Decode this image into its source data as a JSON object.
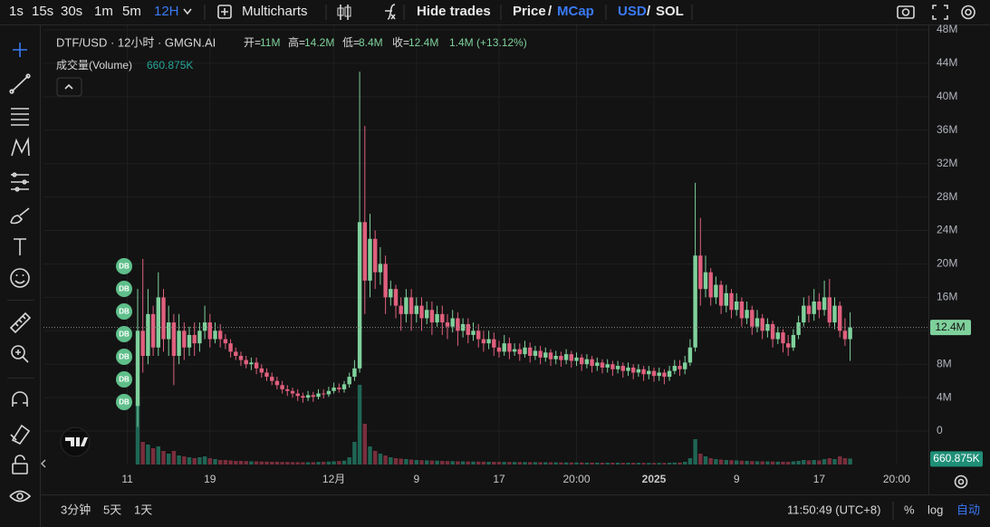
{
  "toolbar": {
    "intervals": [
      "1s",
      "15s",
      "30s",
      "1m",
      "5m",
      "12H"
    ],
    "multicharts": "Multicharts",
    "hide_trades": "Hide trades",
    "price": "Price",
    "separator": "/",
    "mcap": "MCap",
    "usd": "USD",
    "sol": "SOL"
  },
  "chart_data": {
    "type": "candlestick",
    "title": "DTF/USD · 12小时 · GMGN.AI",
    "legend": [
      {
        "label": "开=",
        "value": "11M"
      },
      {
        "label": "高=",
        "value": "14.2M"
      },
      {
        "label": "低=",
        "value": "8.4M"
      },
      {
        "label": "收=",
        "value": "12.4M"
      }
    ],
    "change": "1.4M (+13.12%)",
    "volume_title": "成交量(Volume)",
    "volume_label": "660.875K",
    "price_label": "12.4M",
    "up_color": "#7fd19c",
    "down_color": "#e0607e",
    "volume_up_color": "#1f6655",
    "volume_down_color": "#7a2e3c",
    "grid": true,
    "ylim": [
      -4,
      48
    ],
    "yticks": [
      0,
      {
        "value": 4,
        "label": "4M"
      },
      {
        "value": 8,
        "label": "8M"
      },
      {
        "value": 12,
        "label": "12M"
      },
      {
        "value": 16,
        "label": "16M"
      },
      {
        "value": 20,
        "label": "20M"
      },
      {
        "value": 24,
        "label": "24M"
      },
      {
        "value": 28,
        "label": "28M"
      },
      {
        "value": 32,
        "label": "32M"
      },
      {
        "value": 36,
        "label": "36M"
      },
      {
        "value": 40,
        "label": "40M"
      },
      {
        "value": 44,
        "label": "44M"
      },
      {
        "value": 48,
        "label": "48M"
      }
    ],
    "xticks": [
      {
        "value": -2,
        "label": "11"
      },
      {
        "value": 14,
        "label": "19"
      },
      {
        "value": 38,
        "label": "12月"
      },
      {
        "value": 54,
        "label": "9"
      },
      {
        "value": 70,
        "label": "17"
      },
      {
        "value": 85,
        "label": "20:00"
      },
      {
        "value": 100,
        "label": "2025"
      },
      {
        "value": 116,
        "label": "9"
      },
      {
        "value": 132,
        "label": "17"
      },
      {
        "value": 147,
        "label": "20:00"
      }
    ],
    "markers": [
      "DB",
      "DB",
      "DB",
      "DB",
      "DB",
      "DB",
      "DB"
    ],
    "open": [
      3,
      12,
      9,
      14,
      10,
      16,
      11,
      13,
      9,
      12,
      10,
      11.5,
      10.5,
      12,
      13,
      11,
      12,
      11,
      10.5,
      9.5,
      9,
      8.5,
      8,
      8.2,
      7.5,
      7,
      6.5,
      6,
      5.5,
      5,
      4.8,
      4.5,
      4.2,
      4,
      4.3,
      4.1,
      4.5,
      4.4,
      4.8,
      5.2,
      5,
      5.6,
      6.5,
      7.5,
      25,
      18,
      23,
      19,
      20,
      16,
      17,
      15,
      14,
      16,
      14,
      15,
      13.5,
      14.5,
      13,
      14,
      13,
      12.5,
      13.5,
      12,
      12.8,
      11.5,
      12,
      11,
      10.5,
      11,
      10,
      9.5,
      10.5,
      9.5,
      9.8,
      9.2,
      10,
      9,
      9.6,
      8.8,
      9.4,
      8.6,
      9,
      8.5,
      9.2,
      8.4,
      8.8,
      8,
      8.6,
      7.8,
      8.2,
      7.6,
      8,
      7.4,
      7.8,
      7.2,
      7.6,
      7,
      7.4,
      6.8,
      7.2,
      6.6,
      7,
      6.5,
      7.2,
      7.8,
      7.4,
      8.2,
      10,
      21,
      17,
      19,
      16,
      17.5,
      15,
      16.5,
      14.5,
      15.5,
      13.5,
      14.5,
      12.5,
      13.5,
      12,
      12.8,
      11,
      11.8,
      10.5,
      10,
      11.5,
      13,
      15,
      14,
      15.5,
      14.5,
      16,
      13,
      15,
      12,
      11
    ],
    "high": [
      17,
      20.6,
      17,
      15,
      19,
      17,
      15,
      14,
      14,
      13,
      12.5,
      13,
      13,
      15,
      14,
      13,
      12.8,
      11.6,
      11,
      10,
      9.5,
      9,
      8.8,
      8.8,
      8,
      7.5,
      7,
      6.5,
      6,
      5.5,
      5.2,
      5,
      4.6,
      4.8,
      4.7,
      5,
      5,
      5.3,
      5.8,
      5.7,
      6,
      7,
      8.5,
      43,
      36.5,
      26,
      24,
      22,
      21,
      18,
      17.5,
      16,
      17,
      17,
      16,
      16,
      15.5,
      15.5,
      15,
      15,
      14,
      14.5,
      14.2,
      13.5,
      13.5,
      13,
      12.8,
      12,
      12,
      11.8,
      10.8,
      11.5,
      11.2,
      10.5,
      10.5,
      10.8,
      10.6,
      10.2,
      10.2,
      10,
      9.8,
      9.6,
      9.5,
      9.8,
      9.6,
      9.4,
      9.2,
      9.2,
      9,
      8.8,
      8.6,
      8.6,
      8.4,
      8.4,
      8.2,
      8.2,
      8,
      8,
      7.8,
      7.8,
      7.6,
      7.6,
      7.4,
      7.8,
      8.5,
      8.5,
      9,
      11,
      29.7,
      25.5,
      21,
      19.5,
      18.5,
      18,
      17.5,
      17,
      16.5,
      16,
      15.5,
      15,
      14.5,
      14,
      13.5,
      13.2,
      12.5,
      12.2,
      11.5,
      12.2,
      13.8,
      16,
      16.2,
      17,
      16.5,
      18,
      18.2,
      16,
      15.5,
      13.5,
      14.2
    ],
    "low": [
      0.5,
      7,
      8,
      9,
      9,
      9.5,
      9,
      5.5,
      8,
      8.5,
      9,
      9,
      9.5,
      11,
      10,
      10.5,
      10,
      9.8,
      8.8,
      8.5,
      7.8,
      7.5,
      7.3,
      6.8,
      6.4,
      6,
      5.5,
      5,
      4.5,
      4.2,
      4,
      3.6,
      3.4,
      3.6,
      3.5,
      3.8,
      3.9,
      4.1,
      4.5,
      4.6,
      4.6,
      5.2,
      6,
      7,
      14,
      16,
      17,
      17.5,
      14,
      15,
      13.5,
      12,
      13,
      12,
      13,
      12,
      12.8,
      11.5,
      12.5,
      11.5,
      11,
      11.8,
      10.2,
      11.2,
      10.5,
      10.8,
      10,
      9.5,
      9.8,
      9,
      8.8,
      9,
      8.6,
      9,
      8.4,
      8.8,
      8.2,
      8.5,
      8,
      8.3,
      7.8,
      8,
      7.7,
      8,
      7.6,
      7.8,
      7.2,
      7.5,
      7,
      7.2,
      6.9,
      7,
      6.6,
      6.9,
      6.4,
      6.6,
      6.2,
      6.5,
      6,
      6.2,
      5.9,
      6,
      5.6,
      6,
      6.8,
      6.6,
      6.8,
      7.8,
      9.5,
      15,
      16,
      15,
      15.2,
      14,
      14.2,
      13.5,
      13.8,
      12.5,
      12.8,
      11.5,
      11.8,
      11,
      11.2,
      10,
      10.4,
      9.4,
      9,
      9.6,
      11,
      12.5,
      13,
      13.2,
      13.5,
      13.8,
      12.5,
      12.2,
      11.2,
      10.2,
      8.4
    ],
    "close": [
      12,
      9,
      14,
      10,
      16,
      11,
      13,
      9,
      12,
      10,
      11.5,
      10.5,
      12,
      13,
      11,
      12,
      11,
      10.5,
      9.5,
      9,
      8.5,
      8,
      8.2,
      7.5,
      7,
      6.5,
      6,
      5.5,
      5,
      4.8,
      4.5,
      4.2,
      4,
      4.3,
      4.1,
      4.5,
      4.4,
      4.8,
      5.2,
      5,
      5.6,
      6.5,
      7.5,
      25,
      18,
      23,
      19,
      20,
      16,
      17,
      15,
      14,
      16,
      14,
      15,
      13.5,
      14.5,
      13,
      14,
      13,
      12.5,
      13.5,
      12,
      12.8,
      11.5,
      12,
      11,
      10.5,
      11,
      10,
      9.5,
      10.5,
      9.5,
      9.8,
      9.2,
      10,
      9,
      9.6,
      8.8,
      9.4,
      8.6,
      9,
      8.5,
      9.2,
      8.4,
      8.8,
      8,
      8.6,
      7.8,
      8.2,
      7.6,
      8,
      7.4,
      7.8,
      7.2,
      7.6,
      7,
      7.4,
      6.8,
      7.2,
      6.6,
      7,
      6.5,
      7.2,
      7.8,
      7.4,
      8.2,
      10,
      21,
      17,
      19,
      16,
      17.5,
      15,
      16.5,
      14.5,
      15.5,
      13.5,
      14.5,
      12.5,
      13.5,
      12,
      12.8,
      11,
      11.8,
      10.5,
      10,
      11.5,
      13,
      15,
      14,
      15.5,
      14.5,
      16,
      13,
      15,
      12,
      11,
      12.4
    ],
    "volume": [
      7000,
      2500,
      2200,
      1800,
      2000,
      1500,
      1200,
      1500,
      1000,
      900,
      800,
      700,
      800,
      900,
      700,
      600,
      500,
      500,
      450,
      400,
      400,
      380,
      350,
      350,
      330,
      320,
      300,
      300,
      280,
      280,
      260,
      260,
      250,
      250,
      260,
      280,
      300,
      320,
      350,
      380,
      420,
      800,
      2500,
      8800,
      4500,
      2000,
      1500,
      1200,
      1000,
      800,
      700,
      650,
      600,
      550,
      500,
      480,
      460,
      440,
      420,
      400,
      380,
      370,
      360,
      350,
      340,
      330,
      320,
      310,
      300,
      300,
      290,
      290,
      280,
      280,
      270,
      270,
      260,
      260,
      250,
      250,
      240,
      240,
      230,
      230,
      220,
      220,
      220,
      210,
      210,
      210,
      200,
      200,
      200,
      200,
      190,
      190,
      190,
      190,
      180,
      180,
      180,
      180,
      180,
      200,
      220,
      220,
      300,
      700,
      2800,
      1200,
      900,
      700,
      600,
      550,
      500,
      480,
      450,
      420,
      400,
      380,
      360,
      350,
      340,
      330,
      320,
      310,
      300,
      350,
      400,
      500,
      450,
      500,
      450,
      600,
      700,
      600,
      900,
      700,
      660.875
    ]
  },
  "bottom_bar": {
    "ranges": [
      "3分钟",
      "5天",
      "1天"
    ],
    "clock": "11:50:49 (UTC+8)",
    "percent": "%",
    "log": "log",
    "auto": "自动"
  }
}
